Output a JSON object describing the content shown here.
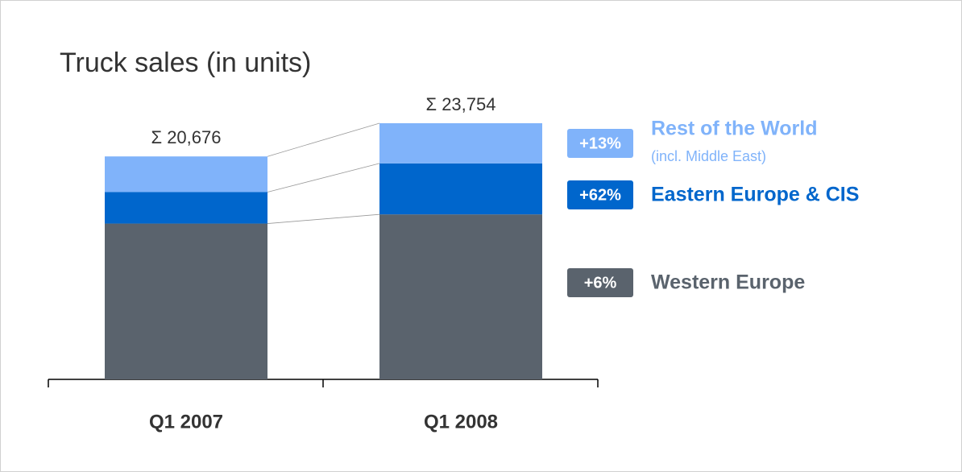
{
  "chart_data": {
    "type": "bar",
    "stacked": true,
    "title": "Truck sales (in units)",
    "categories": [
      "Q1 2007",
      "Q1 2008"
    ],
    "series": [
      {
        "name": "Western Europe",
        "color": "#5a636d",
        "values": [
          14450,
          15300
        ],
        "change_label": "+6%"
      },
      {
        "name": "Eastern Europe & CIS",
        "color": "#0066cc",
        "values": [
          2920,
          4730
        ],
        "change_label": "+62%"
      },
      {
        "name": "Rest of the World",
        "subtitle": "(incl. Middle East)",
        "color": "#80b3fa",
        "values": [
          3306,
          3724
        ],
        "change_label": "+13%"
      }
    ],
    "totals": [
      20676,
      23754
    ],
    "total_labels": [
      "Σ 20,676",
      "Σ 23,754"
    ]
  }
}
